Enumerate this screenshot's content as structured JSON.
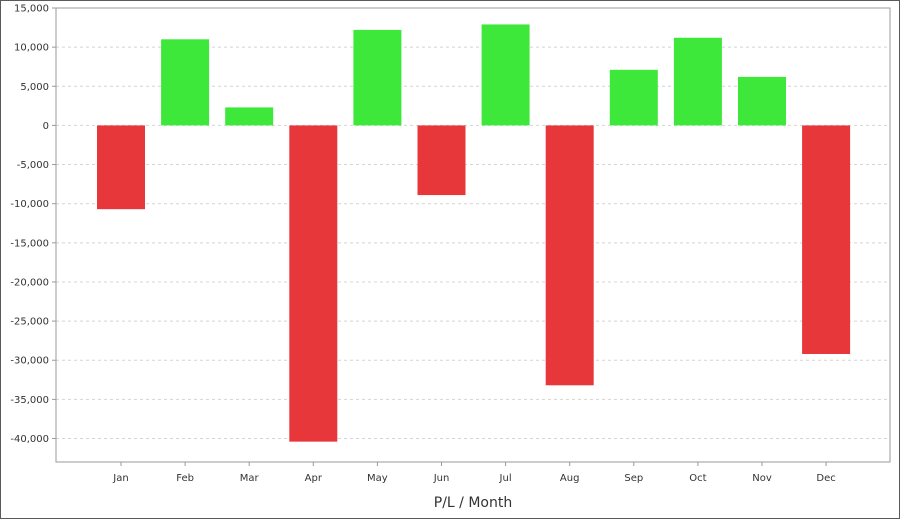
{
  "chart_data": {
    "type": "bar",
    "title": "",
    "xlabel": "P/L / Month",
    "ylabel": "",
    "categories": [
      "Jan",
      "Feb",
      "Mar",
      "Apr",
      "May",
      "Jun",
      "Jul",
      "Aug",
      "Sep",
      "Oct",
      "Nov",
      "Dec"
    ],
    "values": [
      -10700,
      11000,
      2300,
      -40400,
      12200,
      -8900,
      12900,
      -33200,
      7100,
      11200,
      6200,
      -29200
    ],
    "ylim": [
      -43000,
      15000
    ],
    "yticks": [
      15000,
      10000,
      5000,
      0,
      -5000,
      -10000,
      -15000,
      -20000,
      -25000,
      -30000,
      -35000,
      -40000
    ],
    "ytick_labels": [
      "15,000",
      "10,000",
      "5,000",
      "0",
      "-5,000",
      "-10,000",
      "-15,000",
      "-20,000",
      "-25,000",
      "-30,000",
      "-35,000",
      "-40,000"
    ],
    "grid": true,
    "legend": "none",
    "colors": {
      "positive": "#3de83a",
      "negative": "#e8373b",
      "grid": "#d4d4d4",
      "axis": "#9a9a9a"
    }
  }
}
